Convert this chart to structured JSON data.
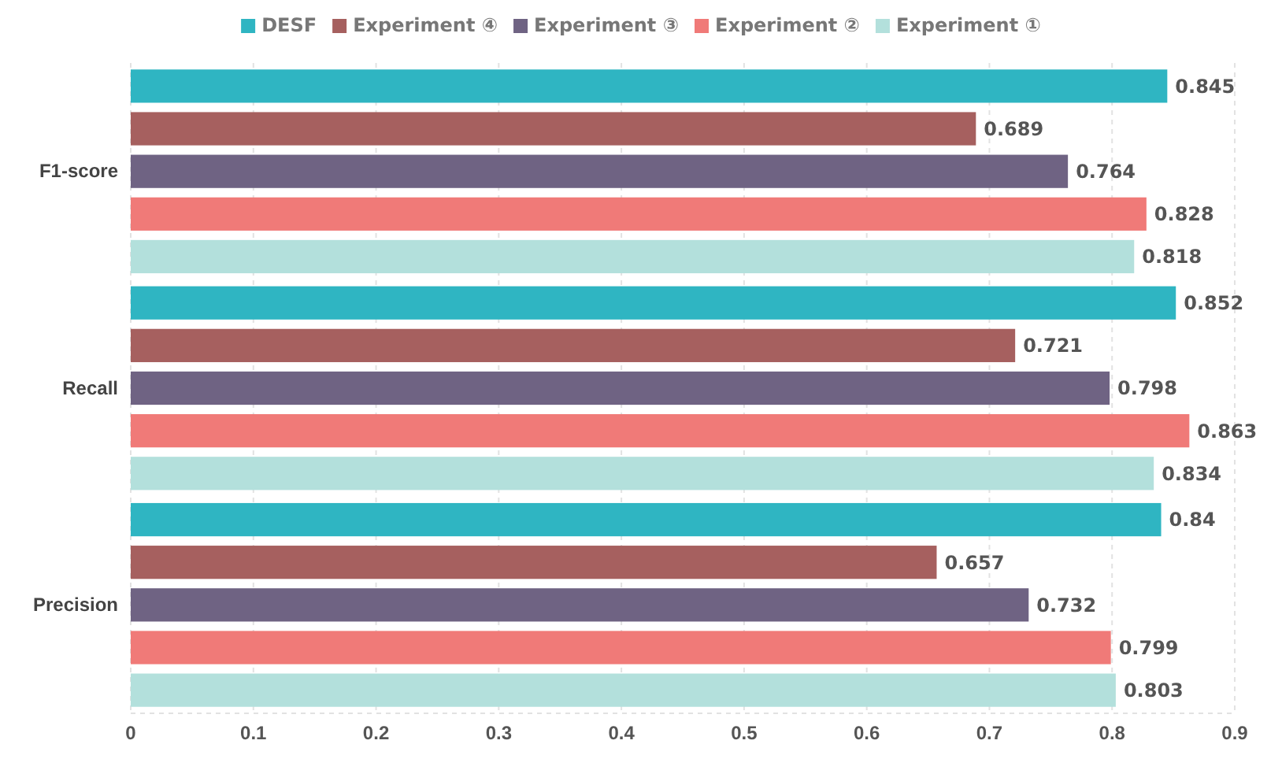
{
  "chart_data": {
    "type": "bar",
    "orientation": "horizontal",
    "categories": [
      "F1-score",
      "Recall",
      "Precision"
    ],
    "series": [
      {
        "name": "DESF",
        "color": "#2fb5c2",
        "values": [
          0.845,
          0.852,
          0.84
        ]
      },
      {
        "name": "Experiment ④",
        "color": "#a6605f",
        "values": [
          0.689,
          0.721,
          0.657
        ]
      },
      {
        "name": "Experiment ③",
        "color": "#6f6383",
        "values": [
          0.764,
          0.798,
          0.732
        ]
      },
      {
        "name": "Experiment ②",
        "color": "#f07a78",
        "values": [
          0.828,
          0.863,
          0.799
        ]
      },
      {
        "name": "Experiment ①",
        "color": "#b3e0dc",
        "values": [
          0.818,
          0.834,
          0.803
        ]
      }
    ],
    "xlim": [
      0,
      0.9
    ],
    "xticks": [
      0,
      0.1,
      0.2,
      0.3,
      0.4,
      0.5,
      0.6,
      0.7,
      0.8,
      0.9
    ],
    "grid": "x",
    "legend": "top",
    "data_labels": true
  }
}
